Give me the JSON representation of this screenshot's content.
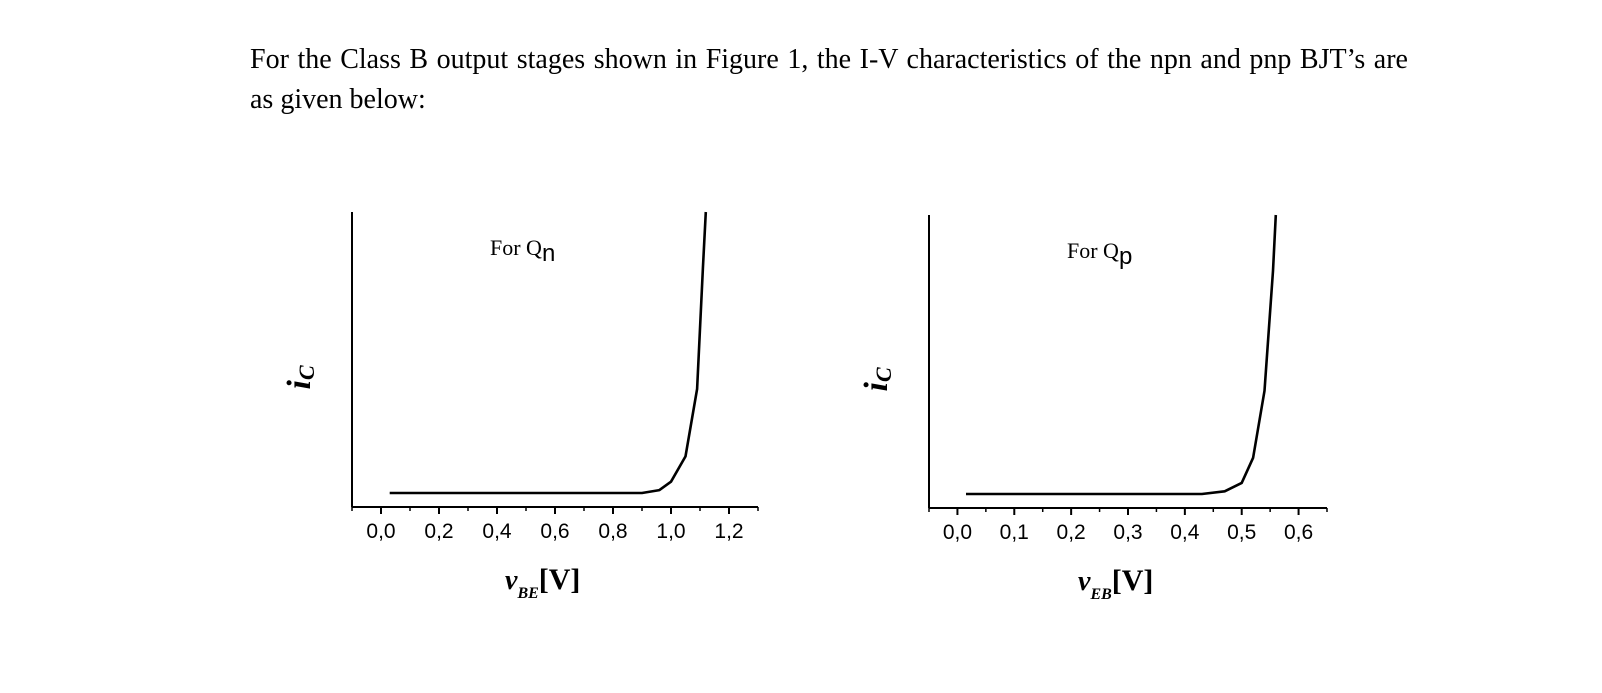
{
  "text": {
    "paragraph": "For the Class B output stages shown in Figure 1, the I-V characteristics of the npn and pnp BJT’s are as given below:"
  },
  "chart_data": [
    {
      "type": "line",
      "annotation": {
        "main": "For Q",
        "sub": "n"
      },
      "xlabel": {
        "var": "v",
        "sub": "BE",
        "unit": "[V]"
      },
      "ylabel": {
        "var": "i",
        "sub": "C"
      },
      "xlim": [
        -0.1,
        1.3
      ],
      "ylim": [
        -0.05,
        1.0
      ],
      "xticks": [
        0.0,
        0.2,
        0.4,
        0.6,
        0.8,
        1.0,
        1.2
      ],
      "xtick_labels": [
        "0,0",
        "0,2",
        "0,4",
        "0,6",
        "0,8",
        "1,0",
        "1,2"
      ],
      "y_tick_labels_shown": false,
      "series": [
        {
          "x": [
            0.03,
            0.5,
            0.9,
            0.96,
            1.0,
            1.05,
            1.09,
            1.11,
            1.12
          ],
          "y": [
            0.0,
            0.0,
            0.0,
            0.01,
            0.04,
            0.13,
            0.37,
            0.8,
            1.0
          ]
        }
      ]
    },
    {
      "type": "line",
      "annotation": {
        "main": "For Q",
        "sub": "p"
      },
      "xlabel": {
        "var": "v",
        "sub": "EB",
        "unit": "[V]"
      },
      "ylabel": {
        "var": "i",
        "sub": "C"
      },
      "xlim": [
        -0.05,
        0.65
      ],
      "ylim": [
        -0.05,
        1.0
      ],
      "xticks": [
        0.0,
        0.1,
        0.2,
        0.3,
        0.4,
        0.5,
        0.6
      ],
      "xtick_labels": [
        "0,0",
        "0,1",
        "0,2",
        "0,3",
        "0,4",
        "0,5",
        "0,6"
      ],
      "y_tick_labels_shown": false,
      "series": [
        {
          "x": [
            0.015,
            0.25,
            0.43,
            0.47,
            0.5,
            0.52,
            0.54,
            0.555,
            0.56
          ],
          "y": [
            0.0,
            0.0,
            0.0,
            0.01,
            0.04,
            0.13,
            0.37,
            0.8,
            1.0
          ]
        }
      ]
    }
  ]
}
